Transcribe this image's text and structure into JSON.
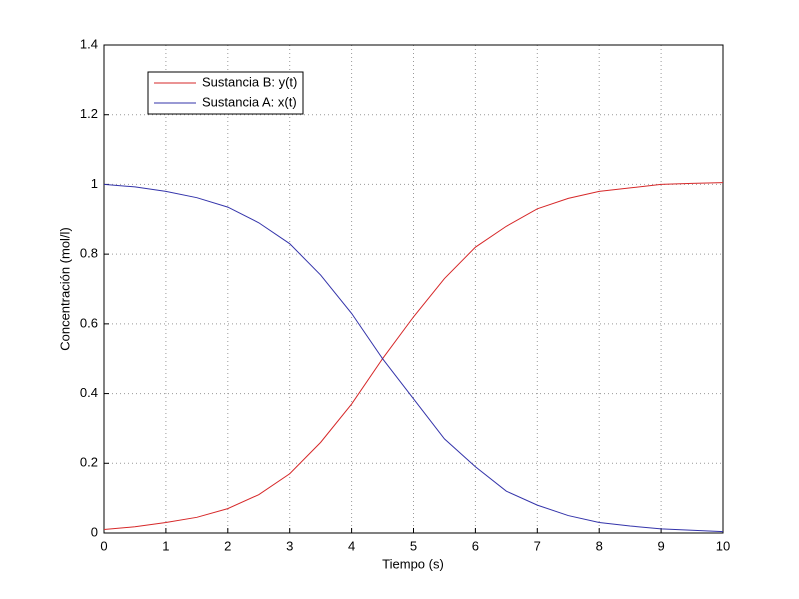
{
  "chart_data": {
    "type": "line",
    "xlabel": "Tiempo (s)",
    "ylabel": "Concentración (mol/l)",
    "x": [
      0,
      0.5,
      1,
      1.5,
      2,
      2.5,
      3,
      3.5,
      4,
      4.5,
      5,
      5.5,
      6,
      6.5,
      7,
      7.5,
      8,
      8.5,
      9,
      9.5,
      10
    ],
    "series": [
      {
        "name": "Sustancia B: y(t)",
        "color": "#d62728",
        "values": [
          0.01,
          0.018,
          0.03,
          0.045,
          0.07,
          0.11,
          0.17,
          0.26,
          0.37,
          0.5,
          0.62,
          0.73,
          0.82,
          0.88,
          0.93,
          0.96,
          0.98,
          0.99,
          1.0,
          1.003,
          1.005
        ]
      },
      {
        "name": "Sustancia A: x(t)",
        "color": "#3333aa",
        "values": [
          1.0,
          0.993,
          0.98,
          0.962,
          0.935,
          0.89,
          0.83,
          0.74,
          0.63,
          0.5,
          0.385,
          0.27,
          0.19,
          0.12,
          0.08,
          0.05,
          0.03,
          0.02,
          0.012,
          0.008,
          0.004
        ]
      }
    ],
    "xlim": [
      0,
      10
    ],
    "xticks": [
      0,
      1,
      2,
      3,
      4,
      5,
      6,
      7,
      8,
      9,
      10
    ],
    "ylim": [
      0,
      1.4
    ],
    "yticks": [
      0,
      0.2,
      0.4,
      0.6,
      0.8,
      1,
      1.2,
      1.4
    ],
    "grid": true,
    "legend": "upper-left"
  }
}
